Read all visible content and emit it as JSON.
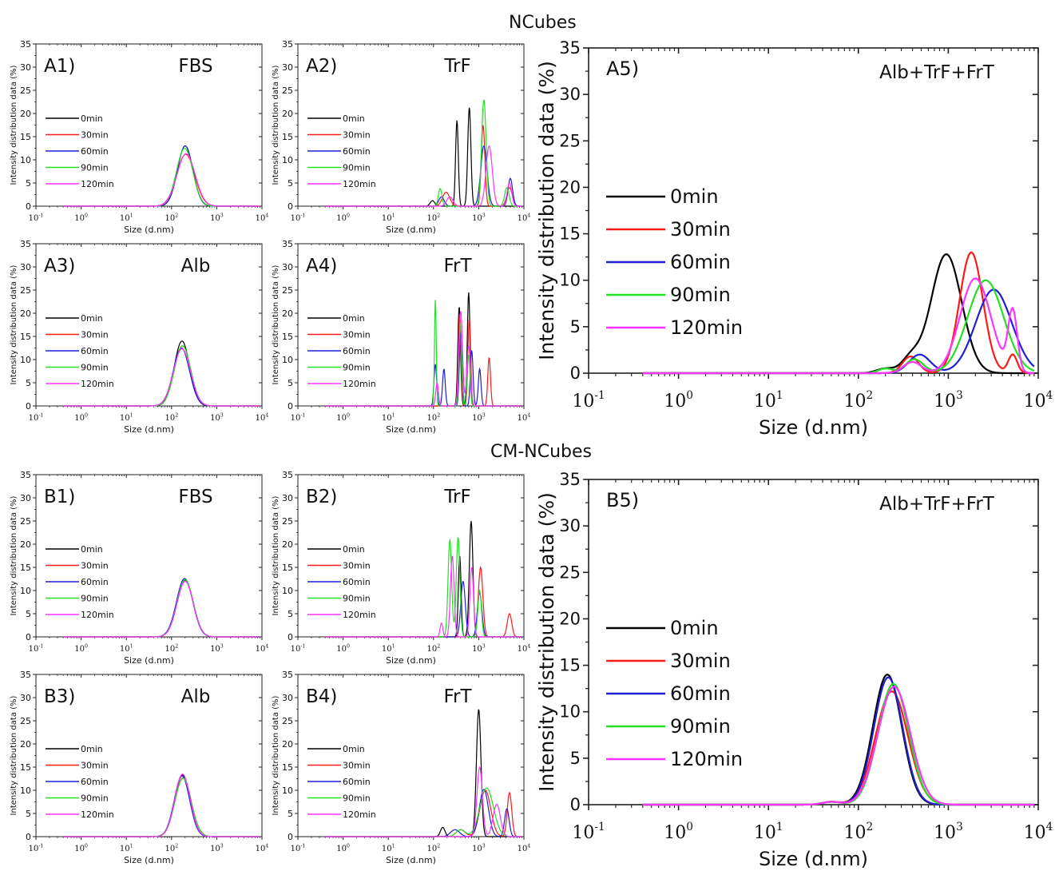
{
  "titles": {
    "top": "NCubes",
    "bottom": "CM-NCubes"
  },
  "legend_labels": [
    "0min",
    "30min",
    "60min",
    "90min",
    "120min"
  ],
  "series_colors": [
    "#000000",
    "#ff1a1a",
    "#1f1fd6",
    "#22e022",
    "#ff33ff"
  ],
  "chart_data": [
    {
      "id": "A1",
      "type": "line",
      "panel_label": "A1)",
      "sample": "FBS",
      "xlabel": "Size (d.nm)",
      "ylabel": "Intensity distribution data (%)",
      "xscale": "log",
      "xlim": [
        0.1,
        10000
      ],
      "ylim": [
        0,
        35
      ],
      "x_ticks": [
        "10-1",
        "100",
        "101",
        "102",
        "103",
        "104"
      ],
      "y_ticks": [
        0,
        5,
        10,
        15,
        20,
        25,
        30,
        35
      ],
      "legend_position": "left",
      "series": [
        {
          "name": "0min",
          "peaks": [
            [
              200,
              13,
              0.17
            ]
          ]
        },
        {
          "name": "30min",
          "peaks": [
            [
              205,
              11.2,
              0.2
            ]
          ]
        },
        {
          "name": "60min",
          "peaks": [
            [
              200,
              13,
              0.17
            ]
          ]
        },
        {
          "name": "90min",
          "peaks": [
            [
              195,
              12.5,
              0.18
            ]
          ]
        },
        {
          "name": "120min",
          "peaks": [
            [
              210,
              11.3,
              0.2
            ]
          ]
        }
      ]
    },
    {
      "id": "A2",
      "type": "line",
      "panel_label": "A2)",
      "sample": "TrF",
      "xlabel": "Size (d.nm)",
      "ylabel": "Intensity distribution data (%)",
      "xscale": "log",
      "xlim": [
        0.1,
        10000
      ],
      "ylim": [
        0,
        35
      ],
      "x_ticks": [
        "10-1",
        "100",
        "101",
        "102",
        "103",
        "104"
      ],
      "y_ticks": [
        0,
        5,
        10,
        15,
        20,
        25,
        30,
        35
      ],
      "legend_position": "left",
      "series": [
        {
          "name": "0min",
          "peaks": [
            [
              95,
              1.2,
              0.05
            ],
            [
              330,
              18.5,
              0.03
            ],
            [
              620,
              21.3,
              0.035
            ]
          ]
        },
        {
          "name": "30min",
          "peaks": [
            [
              190,
              3,
              0.08
            ],
            [
              1250,
              17.5,
              0.04
            ],
            [
              4800,
              4,
              0.06
            ]
          ]
        },
        {
          "name": "60min",
          "peaks": [
            [
              150,
              2,
              0.06
            ],
            [
              1300,
              13,
              0.07
            ],
            [
              5000,
              6,
              0.05
            ]
          ]
        },
        {
          "name": "90min",
          "peaks": [
            [
              140,
              3.8,
              0.04
            ],
            [
              1300,
              23,
              0.05
            ],
            [
              4200,
              4,
              0.05
            ]
          ]
        },
        {
          "name": "120min",
          "peaks": [
            [
              230,
              2,
              0.07
            ],
            [
              1700,
              13,
              0.07
            ],
            [
              4800,
              5,
              0.05
            ]
          ]
        }
      ]
    },
    {
      "id": "A3",
      "type": "line",
      "panel_label": "A3)",
      "sample": "Alb",
      "xlabel": "Size (d.nm)",
      "ylabel": "Intensity distribution data (%)",
      "xscale": "log",
      "xlim": [
        0.1,
        10000
      ],
      "ylim": [
        0,
        35
      ],
      "x_ticks": [
        "10-1",
        "100",
        "101",
        "102",
        "103",
        "104"
      ],
      "y_ticks": [
        0,
        5,
        10,
        15,
        20,
        25,
        30,
        35
      ],
      "legend_position": "left",
      "series": [
        {
          "name": "0min",
          "peaks": [
            [
              170,
              14,
              0.17
            ]
          ]
        },
        {
          "name": "30min",
          "peaks": [
            [
              175,
              13,
              0.18
            ]
          ]
        },
        {
          "name": "60min",
          "peaks": [
            [
              165,
              12.5,
              0.18
            ]
          ]
        },
        {
          "name": "90min",
          "peaks": [
            [
              175,
              13,
              0.18
            ]
          ]
        },
        {
          "name": "120min",
          "peaks": [
            [
              170,
              12.3,
              0.19
            ]
          ]
        }
      ]
    },
    {
      "id": "A4",
      "type": "line",
      "panel_label": "A4)",
      "sample": "FrT",
      "xlabel": "Size (d.nm)",
      "ylabel": "Intensity distribution data (%)",
      "xscale": "log",
      "xlim": [
        0.1,
        10000
      ],
      "ylim": [
        0,
        35
      ],
      "x_ticks": [
        "10-1",
        "100",
        "101",
        "102",
        "103",
        "104"
      ],
      "y_ticks": [
        0,
        5,
        10,
        15,
        20,
        25,
        30,
        35
      ],
      "legend_position": "left",
      "series": [
        {
          "name": "0min",
          "peaks": [
            [
              370,
              21.5,
              0.03
            ],
            [
              600,
              24.5,
              0.03
            ]
          ]
        },
        {
          "name": "30min",
          "peaks": [
            [
              380,
              20,
              0.03
            ],
            [
              620,
              19,
              0.03
            ],
            [
              1700,
              10.5,
              0.03
            ]
          ]
        },
        {
          "name": "60min",
          "peaks": [
            [
              110,
              9,
              0.03
            ],
            [
              170,
              8,
              0.03
            ],
            [
              400,
              16,
              0.03
            ],
            [
              700,
              12,
              0.03
            ],
            [
              1050,
              8,
              0.03
            ]
          ]
        },
        {
          "name": "90min",
          "peaks": [
            [
              110,
              23,
              0.02
            ],
            [
              390,
              18,
              0.03
            ],
            [
              600,
              11,
              0.03
            ]
          ]
        },
        {
          "name": "120min",
          "peaks": [
            [
              120,
              5,
              0.03
            ],
            [
              400,
              20.5,
              0.04
            ],
            [
              600,
              13,
              0.04
            ]
          ]
        }
      ]
    },
    {
      "id": "A5",
      "type": "line",
      "panel_label": "A5)",
      "sample": "Alb+TrF+FrT",
      "xlabel": "Size (d.nm)",
      "ylabel": "Intensity distribution data (%)",
      "xscale": "log",
      "xlim": [
        0.1,
        10000
      ],
      "ylim": [
        0,
        35
      ],
      "x_ticks": [
        "10-1",
        "100",
        "101",
        "102",
        "103",
        "104"
      ],
      "y_ticks": [
        0,
        5,
        10,
        15,
        20,
        25,
        30,
        35
      ],
      "legend_position": "left",
      "series": [
        {
          "name": "0min",
          "peaks": [
            [
              200,
              0.5,
              0.1
            ],
            [
              380,
              1.5,
              0.1
            ],
            [
              950,
              12.8,
              0.17
            ]
          ]
        },
        {
          "name": "30min",
          "peaks": [
            [
              380,
              1.8,
              0.09
            ],
            [
              1800,
              13,
              0.13
            ],
            [
              5200,
              2,
              0.05
            ]
          ]
        },
        {
          "name": "60min",
          "peaks": [
            [
              480,
              2,
              0.12
            ],
            [
              3200,
              9,
              0.2
            ]
          ]
        },
        {
          "name": "90min",
          "peaks": [
            [
              200,
              0.5,
              0.08
            ],
            [
              420,
              1.5,
              0.1
            ],
            [
              2600,
              10,
              0.2
            ]
          ]
        },
        {
          "name": "120min",
          "peaks": [
            [
              400,
              1.2,
              0.1
            ],
            [
              2000,
              10.2,
              0.17
            ],
            [
              5200,
              6.5,
              0.05
            ]
          ]
        }
      ]
    },
    {
      "id": "B1",
      "type": "line",
      "panel_label": "B1)",
      "sample": "FBS",
      "xlabel": "Size (d.nm)",
      "ylabel": "Intensity distribution data (%)",
      "xscale": "log",
      "xlim": [
        0.1,
        10000
      ],
      "ylim": [
        0,
        35
      ],
      "x_ticks": [
        "10-1",
        "100",
        "101",
        "102",
        "103",
        "104"
      ],
      "y_ticks": [
        0,
        5,
        10,
        15,
        20,
        25,
        30,
        35
      ],
      "legend_position": "left",
      "series": [
        {
          "name": "0min",
          "peaks": [
            [
              200,
              12.3,
              0.18
            ]
          ]
        },
        {
          "name": "30min",
          "peaks": [
            [
              200,
              12,
              0.18
            ]
          ]
        },
        {
          "name": "60min",
          "peaks": [
            [
              195,
              12.6,
              0.18
            ]
          ]
        },
        {
          "name": "90min",
          "peaks": [
            [
              200,
              12.4,
              0.18
            ]
          ]
        },
        {
          "name": "120min",
          "peaks": [
            [
              200,
              12,
              0.18
            ]
          ]
        }
      ]
    },
    {
      "id": "B2",
      "type": "line",
      "panel_label": "B2)",
      "sample": "TrF",
      "xlabel": "Size (d.nm)",
      "ylabel": "Intensity distribution data (%)",
      "xscale": "log",
      "xlim": [
        0.1,
        10000
      ],
      "ylim": [
        0,
        35
      ],
      "x_ticks": [
        "10-1",
        "100",
        "101",
        "102",
        "103",
        "104"
      ],
      "y_ticks": [
        0,
        5,
        10,
        15,
        20,
        25,
        30,
        35
      ],
      "legend_position": "left",
      "series": [
        {
          "name": "0min",
          "peaks": [
            [
              380,
              17.5,
              0.03
            ],
            [
              680,
              25,
              0.04
            ]
          ]
        },
        {
          "name": "30min",
          "peaks": [
            [
              1100,
              15,
              0.05
            ],
            [
              4800,
              5,
              0.05
            ]
          ]
        },
        {
          "name": "60min",
          "peaks": [
            [
              450,
              12,
              0.05
            ],
            [
              1050,
              9.5,
              0.05
            ]
          ]
        },
        {
          "name": "90min",
          "peaks": [
            [
              230,
              21,
              0.04
            ],
            [
              350,
              21.5,
              0.04
            ],
            [
              1050,
              10,
              0.04
            ]
          ]
        },
        {
          "name": "120min",
          "peaks": [
            [
              150,
              3,
              0.03
            ],
            [
              260,
              17.5,
              0.04
            ],
            [
              700,
              15,
              0.04
            ]
          ]
        }
      ]
    },
    {
      "id": "B3",
      "type": "line",
      "panel_label": "B3)",
      "sample": "Alb",
      "xlabel": "Size (d.nm)",
      "ylabel": "Intensity distribution data (%)",
      "xscale": "log",
      "xlim": [
        0.1,
        10000
      ],
      "ylim": [
        0,
        35
      ],
      "x_ticks": [
        "10-1",
        "100",
        "101",
        "102",
        "103",
        "104"
      ],
      "y_ticks": [
        0,
        5,
        10,
        15,
        20,
        25,
        30,
        35
      ],
      "legend_position": "left",
      "series": [
        {
          "name": "0min",
          "peaks": [
            [
              175,
              13.3,
              0.17
            ]
          ]
        },
        {
          "name": "30min",
          "peaks": [
            [
              180,
              12.7,
              0.18
            ]
          ]
        },
        {
          "name": "60min",
          "peaks": [
            [
              170,
              13.1,
              0.17
            ]
          ]
        },
        {
          "name": "90min",
          "peaks": [
            [
              180,
              12.6,
              0.18
            ]
          ]
        },
        {
          "name": "120min",
          "peaks": [
            [
              175,
              13.5,
              0.17
            ]
          ]
        }
      ]
    },
    {
      "id": "B4",
      "type": "line",
      "panel_label": "B4)",
      "sample": "FrT",
      "xlabel": "Size (d.nm)",
      "ylabel": "Intensity distribution data (%)",
      "xscale": "log",
      "xlim": [
        0.1,
        10000
      ],
      "ylim": [
        0,
        35
      ],
      "x_ticks": [
        "10-1",
        "100",
        "101",
        "102",
        "103",
        "104"
      ],
      "y_ticks": [
        0,
        5,
        10,
        15,
        20,
        25,
        30,
        35
      ],
      "legend_position": "left",
      "series": [
        {
          "name": "0min",
          "peaks": [
            [
              160,
              2,
              0.05
            ],
            [
              1000,
              27.5,
              0.05
            ]
          ]
        },
        {
          "name": "30min",
          "peaks": [
            [
              400,
              1.5,
              0.1
            ],
            [
              1400,
              10,
              0.12
            ],
            [
              4800,
              9.5,
              0.05
            ]
          ]
        },
        {
          "name": "60min",
          "peaks": [
            [
              300,
              1.5,
              0.1
            ],
            [
              1300,
              10.2,
              0.1
            ],
            [
              4200,
              6,
              0.05
            ]
          ]
        },
        {
          "name": "90min",
          "peaks": [
            [
              400,
              1.5,
              0.1
            ],
            [
              1500,
              10.5,
              0.15
            ]
          ]
        },
        {
          "name": "120min",
          "peaks": [
            [
              1050,
              15,
              0.06
            ],
            [
              2500,
              7,
              0.08
            ]
          ]
        }
      ]
    },
    {
      "id": "B5",
      "type": "line",
      "panel_label": "B5)",
      "sample": "Alb+TrF+FrT",
      "xlabel": "Size (d.nm)",
      "ylabel": "Intensity distribution data (%)",
      "xscale": "log",
      "xlim": [
        0.1,
        10000
      ],
      "ylim": [
        0,
        35
      ],
      "x_ticks": [
        "10-1",
        "100",
        "101",
        "102",
        "103",
        "104"
      ],
      "y_ticks": [
        0,
        5,
        10,
        15,
        20,
        25,
        30,
        35
      ],
      "legend_position": "left",
      "series": [
        {
          "name": "0min",
          "peaks": [
            [
              50,
              0.3,
              0.1
            ],
            [
              210,
              14,
              0.16
            ]
          ]
        },
        {
          "name": "30min",
          "peaks": [
            [
              50,
              0.3,
              0.1
            ],
            [
              235,
              12.2,
              0.18
            ]
          ]
        },
        {
          "name": "60min",
          "peaks": [
            [
              50,
              0.3,
              0.1
            ],
            [
              215,
              13.7,
              0.16
            ]
          ]
        },
        {
          "name": "90min",
          "peaks": [
            [
              50,
              0.3,
              0.1
            ],
            [
              245,
              13,
              0.17
            ]
          ]
        },
        {
          "name": "120min",
          "peaks": [
            [
              50,
              0.3,
              0.1
            ],
            [
              250,
              12.7,
              0.18
            ]
          ]
        }
      ]
    }
  ]
}
